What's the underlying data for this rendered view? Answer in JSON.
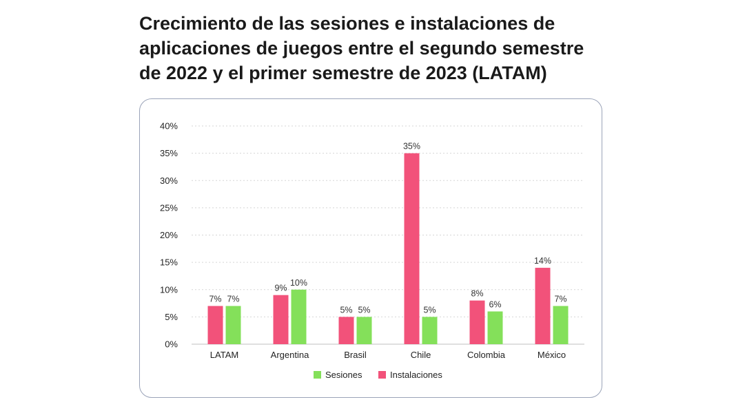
{
  "title": "Crecimiento de las sesiones e instalaciones de aplicaciones de juegos entre el segundo semestre de 2022 y el primer semestre de 2023 (LATAM)",
  "chart_data": {
    "type": "bar",
    "categories": [
      "LATAM",
      "Argentina",
      "Brasil",
      "Chile",
      "Colombia",
      "México"
    ],
    "series": [
      {
        "name": "Instalaciones",
        "values": [
          7,
          9,
          5,
          35,
          8,
          14
        ],
        "labels": [
          "7%",
          "9%",
          "5%",
          "35%",
          "8%",
          "14%"
        ],
        "color": "#f2527a"
      },
      {
        "name": "Sesiones",
        "values": [
          7,
          10,
          5,
          5,
          6,
          7
        ],
        "labels": [
          "7%",
          "10%",
          "5%",
          "5%",
          "6%",
          "7%"
        ],
        "color": "#84e05a"
      }
    ],
    "yticks": [
      "0%",
      "5%",
      "10%",
      "15%",
      "20%",
      "25%",
      "30%",
      "35%",
      "40%"
    ],
    "ylim": [
      0,
      40
    ],
    "grid": true,
    "legend": {
      "position": "bottom",
      "entries": [
        "Sesiones",
        "Instalaciones"
      ]
    }
  }
}
